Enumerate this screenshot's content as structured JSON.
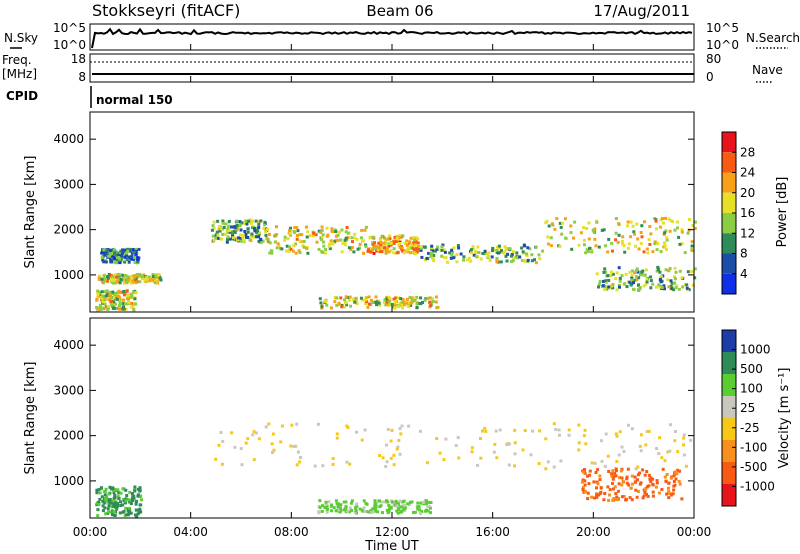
{
  "header": {
    "station": "Stokkseyri (fitACF)",
    "beam": "Beam 06",
    "date": "17/Aug/2011"
  },
  "top_panels": {
    "nsky_label": "N.Sky",
    "nsearch_label": "N.Search",
    "freq_label_1": "Freq.",
    "freq_label_2": "[MHz]",
    "nave_label": "Nave",
    "cpid_label": "CPID",
    "cpid_value": "normal 150",
    "noise_left_ticks": [
      "10^5",
      "10^0"
    ],
    "noise_right_ticks": [
      "10^5",
      "10^0"
    ],
    "freq_left_ticks": [
      "18",
      "8"
    ],
    "freq_right_ticks": [
      "80",
      "0"
    ]
  },
  "power_panel": {
    "ylabel": "Slant Range [km]",
    "colorbar_label": "Power [dB]",
    "colorbar_ticks": [
      "28",
      "24",
      "20",
      "16",
      "12",
      "8",
      "4"
    ],
    "colors": [
      "#e8141c",
      "#f85a14",
      "#f8a018",
      "#e8e028",
      "#8ccd46",
      "#2f8b57",
      "#1c4ea8",
      "#1030e8"
    ]
  },
  "velocity_panel": {
    "ylabel": "Slant Range [km]",
    "colorbar_label": "Velocity [m s⁻¹]",
    "colorbar_ticks": [
      "1000",
      "500",
      "100",
      "25",
      "-25",
      "-100",
      "-500",
      "-1000"
    ],
    "colors": [
      "#1c3ca8",
      "#2f8b57",
      "#5acd32",
      "#c8c8c0",
      "#f8c818",
      "#f8901c",
      "#f85a14",
      "#e8141c"
    ]
  },
  "xaxis": {
    "label": "Time UT",
    "ticks": [
      "00:00",
      "04:00",
      "08:00",
      "12:00",
      "16:00",
      "20:00",
      "00:00"
    ]
  },
  "chart_data": {
    "type": "heatmap",
    "title": "Stokkseyri (fitACF) Beam 06 17/Aug/2011",
    "xlabel": "Time UT",
    "ylabel": "Slant Range [km]",
    "xlim": [
      0,
      24
    ],
    "ylim": [
      180,
      4600
    ],
    "x_ticks_hours": [
      0,
      4,
      8,
      12,
      16,
      20,
      24
    ],
    "y_ticks": [
      1000,
      2000,
      3000,
      4000
    ],
    "power_range_db": [
      0,
      30
    ],
    "velocity_range_ms": [
      -1000,
      1000
    ],
    "power_regions": [
      {
        "t0": 0.2,
        "t1": 1.8,
        "r0": 250,
        "r1": 700,
        "level": 16
      },
      {
        "t0": 0.3,
        "t1": 2.8,
        "r0": 850,
        "r1": 1050,
        "level": 16
      },
      {
        "t0": 0.4,
        "t1": 1.9,
        "r0": 1300,
        "r1": 1600,
        "level": 8
      },
      {
        "t0": 4.8,
        "t1": 7.0,
        "r0": 1750,
        "r1": 2250,
        "level": 12
      },
      {
        "t0": 7.0,
        "t1": 11.0,
        "r0": 1500,
        "r1": 2100,
        "level": 16
      },
      {
        "t0": 11.0,
        "t1": 13.0,
        "r0": 1500,
        "r1": 1900,
        "level": 20
      },
      {
        "t0": 13.0,
        "t1": 18.0,
        "r0": 1300,
        "r1": 1700,
        "level": 12
      },
      {
        "t0": 18.0,
        "t1": 24.0,
        "r0": 1500,
        "r1": 2300,
        "level": 16
      },
      {
        "t0": 9.0,
        "t1": 13.8,
        "r0": 300,
        "r1": 550,
        "level": 16
      },
      {
        "t0": 20.0,
        "t1": 24.0,
        "r0": 700,
        "r1": 1200,
        "level": 12
      }
    ],
    "velocity_regions": [
      {
        "t0": 4.8,
        "t1": 24.0,
        "r0": 1300,
        "r1": 2300,
        "velocity": 0
      },
      {
        "t0": 0.2,
        "t1": 2.0,
        "r0": 250,
        "r1": 900,
        "velocity": 400
      },
      {
        "t0": 9.0,
        "t1": 13.5,
        "r0": 300,
        "r1": 600,
        "velocity": 80
      },
      {
        "t0": 19.5,
        "t1": 23.5,
        "r0": 600,
        "r1": 1300,
        "velocity": -400
      }
    ]
  }
}
